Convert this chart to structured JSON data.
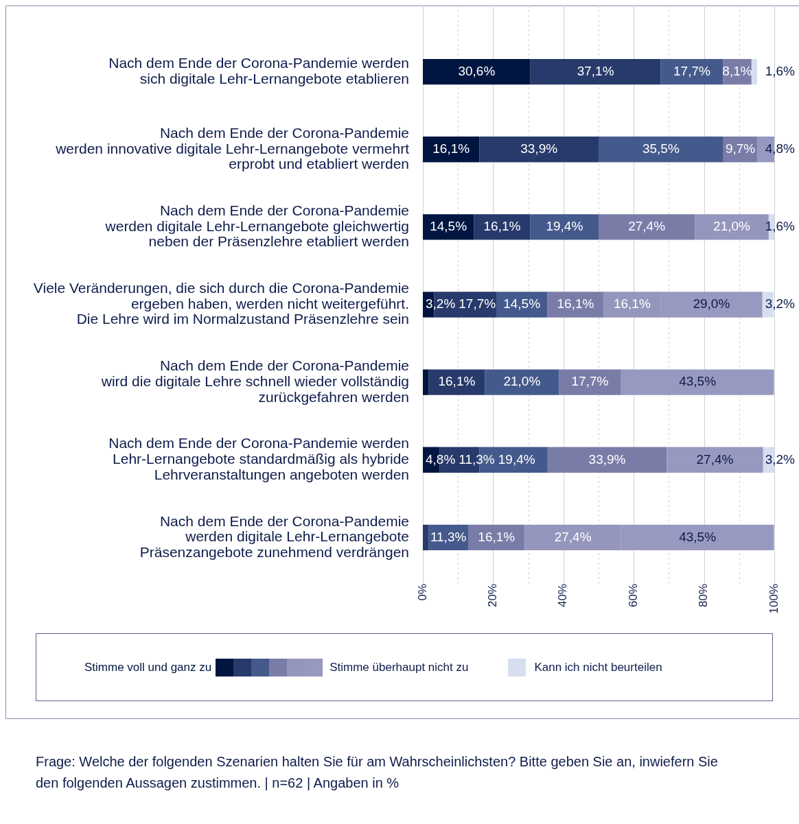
{
  "chart_data": {
    "type": "bar",
    "orientation": "horizontal",
    "stacked": true,
    "categories": [
      "Nach dem Ende der Corona-Pandemie werden\nsich digitale Lehr-Lernangebote etablieren",
      "Nach dem Ende der Corona-Pandemie\nwerden innovative digitale Lehr-Lernangebote vermehrt\nerprobt und etabliert werden",
      "Nach dem Ende der Corona-Pandemie\nwerden digitale Lehr-Lernangebote gleichwertig\nneben der Präsenzlehre etabliert werden",
      "Viele Veränderungen, die sich durch die Corona-Pandemie\nergeben haben, werden nicht weitergeführt.\nDie Lehre wird im Normalzustand Präsenzlehre sein",
      "Nach dem Ende der Corona-Pandemie\nwird die digitale Lehre schnell wieder vollständig\nzurückgefahren werden",
      "Nach dem Ende der Corona-Pandemie werden\nLehr-Lernangebote standardmäßig als hybride\nLehrveranstaltungen angeboten werden",
      "Nach dem Ende der Corona-Pandemie\nwerden digitale Lehr-Lernangebote\nPräsenzangebote zunehmend verdrängen"
    ],
    "series": [
      {
        "name": "Stimme voll und ganz zu",
        "color": "#001641",
        "values": [
          30.6,
          16.1,
          14.5,
          3.2,
          1.6,
          4.8,
          null
        ],
        "value_labels": [
          "30,6%",
          "16,1%",
          "14,5%",
          "3,2%",
          null,
          "4,8%",
          null
        ]
      },
      {
        "color": "#283a6b",
        "values": [
          37.1,
          33.9,
          16.1,
          17.7,
          16.1,
          11.3,
          1.6
        ],
        "value_labels": [
          "37,1%",
          "33,9%",
          "16,1%",
          "17,7%",
          "16,1%",
          "11,3%",
          null
        ]
      },
      {
        "color": "#455a8c",
        "values": [
          17.7,
          35.5,
          19.4,
          14.5,
          21.0,
          19.4,
          11.3
        ],
        "value_labels": [
          "17,7%",
          "35,5%",
          "19,4%",
          "14,5%",
          "21,0%",
          "19,4%",
          "11,3%"
        ]
      },
      {
        "color": "#7a7ca8",
        "values": [
          8.1,
          9.7,
          27.4,
          16.1,
          17.7,
          33.9,
          16.1
        ],
        "value_labels": [
          "8,1%",
          "9,7%",
          "27,4%",
          "16,1%",
          "17,7%",
          "33,9%",
          "16,1%"
        ]
      },
      {
        "color": "#9596bd",
        "values": [
          null,
          null,
          21.0,
          16.1,
          null,
          null,
          27.4
        ],
        "value_labels": [
          null,
          null,
          "21,0%",
          "16,1%",
          null,
          null,
          "27,4%"
        ]
      },
      {
        "name": "Stimme überhaupt nicht zu",
        "color": "#9899c0",
        "values": [
          null,
          4.8,
          null,
          29.0,
          43.5,
          27.4,
          43.5
        ],
        "value_labels": [
          null,
          "4,8%",
          null,
          "29,0%",
          "43,5%",
          "27,4%",
          "43,5%"
        ]
      },
      {
        "name": "Kann ich nicht beurteilen",
        "color": "#d6dff0",
        "values": [
          1.6,
          null,
          1.6,
          3.2,
          null,
          3.2,
          null
        ],
        "value_labels": [
          "1,6%",
          null,
          "1,6%",
          "3,2%",
          null,
          "3,2%",
          null
        ]
      }
    ],
    "xlim": [
      0,
      100
    ],
    "xticks": [
      {
        "value": 0,
        "label": "0%"
      },
      {
        "value": 10,
        "label": null
      },
      {
        "value": 20,
        "label": "20%"
      },
      {
        "value": 30,
        "label": null
      },
      {
        "value": 40,
        "label": "40%"
      },
      {
        "value": 50,
        "label": null
      },
      {
        "value": 60,
        "label": "60%"
      },
      {
        "value": 70,
        "label": null
      },
      {
        "value": 80,
        "label": "80%"
      },
      {
        "value": 90,
        "label": null
      },
      {
        "value": 100,
        "label": "100%"
      }
    ],
    "grid": "x",
    "legend": "bottom",
    "annotations": [
      "Frage: Welche der folgenden Szenarien halten Sie für am Wahrscheinlichsten? Bitte geben Sie an, inwiefern Sie den folgenden Aussagen zustimmen.  | n=62 | Angaben in %"
    ]
  }
}
